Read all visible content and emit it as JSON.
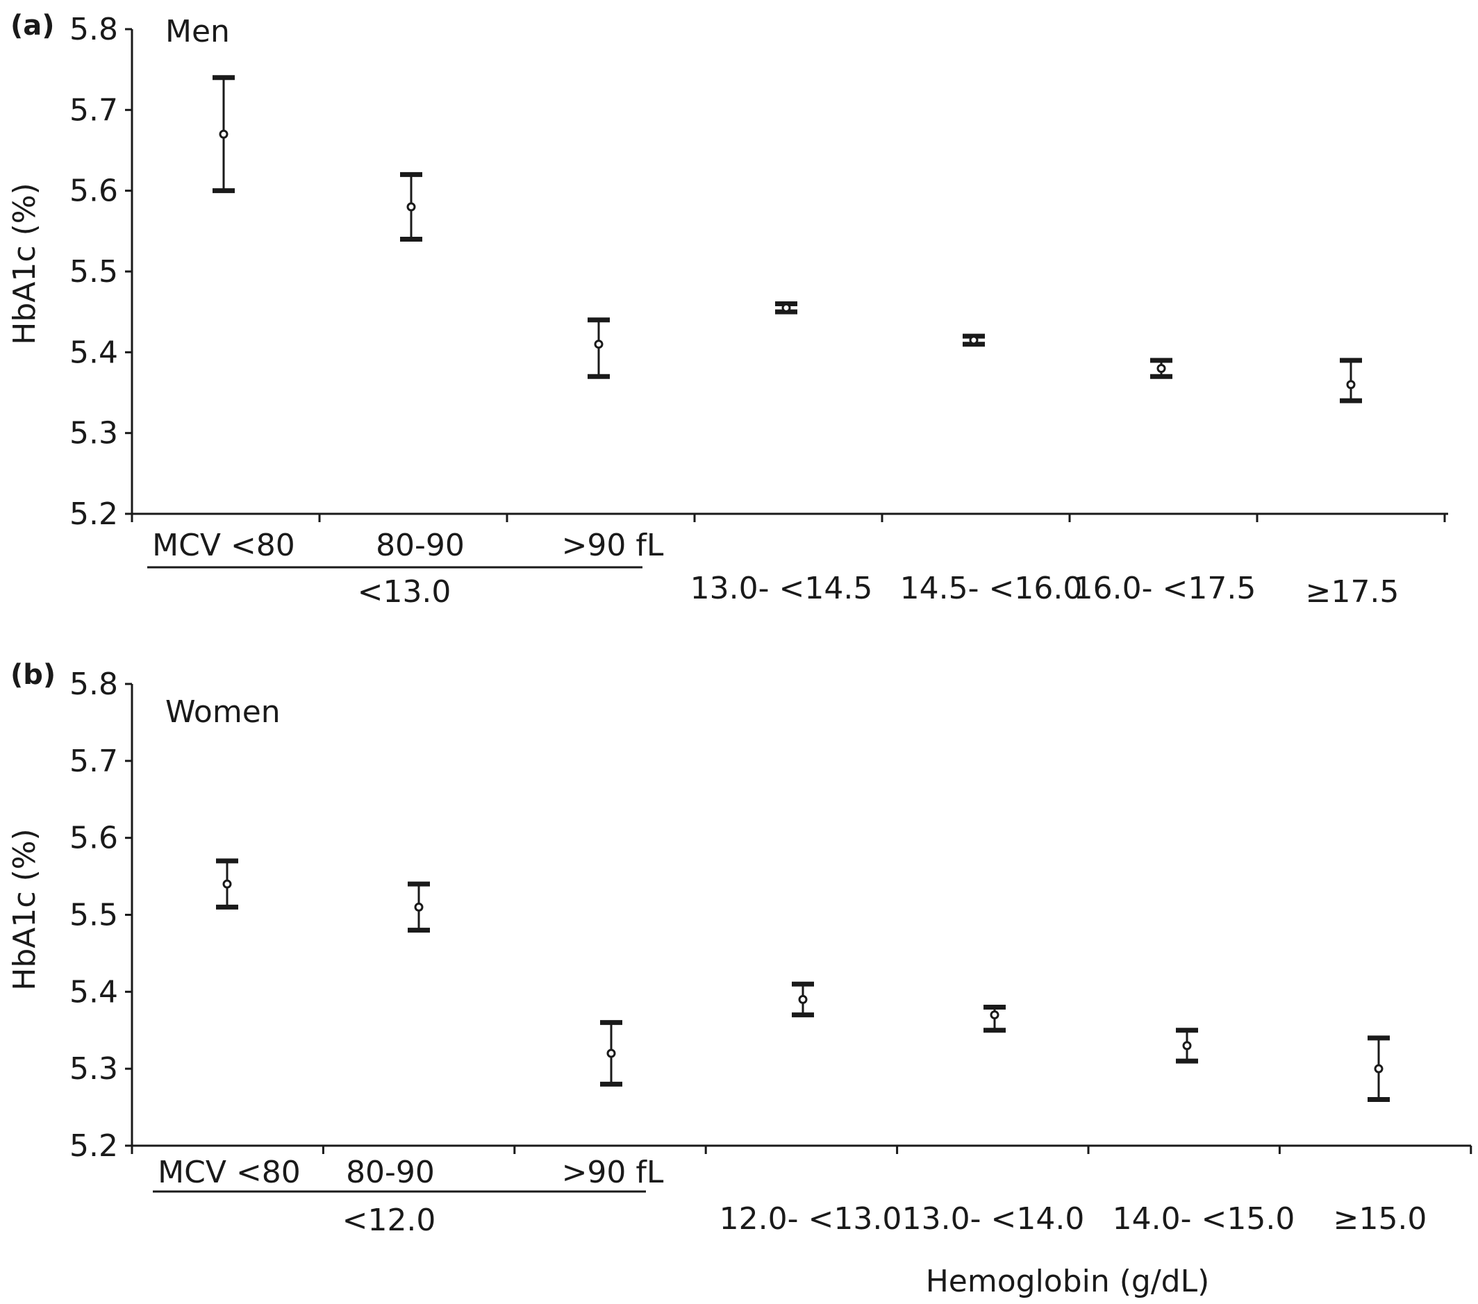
{
  "chart_data": [
    {
      "type": "scatter",
      "subtype": "point-with-error-bars",
      "panel_label": "(a)",
      "title": "Men",
      "ylabel": "HbA1c (%)",
      "ylim": [
        5.2,
        5.8
      ],
      "yticks": [
        5.2,
        5.3,
        5.4,
        5.5,
        5.6,
        5.7,
        5.8
      ],
      "ytick_labels": [
        "5.2",
        "5.3",
        "5.4",
        "5.5",
        "5.6",
        "5.7",
        "5.8"
      ],
      "categories": [
        "MCV <80",
        "80-90",
        ">90 fL",
        "13.0- <14.5",
        "14.5- <16.0",
        "16.0- <17.5",
        "≥17.5"
      ],
      "group_label": "<13.0",
      "grouped_count": 3,
      "values": [
        5.67,
        5.58,
        5.41,
        5.455,
        5.415,
        5.38,
        5.36
      ],
      "lower": [
        5.6,
        5.54,
        5.37,
        5.45,
        5.41,
        5.37,
        5.34
      ],
      "upper": [
        5.74,
        5.62,
        5.44,
        5.46,
        5.42,
        5.39,
        5.39
      ],
      "grid": false
    },
    {
      "type": "scatter",
      "subtype": "point-with-error-bars",
      "panel_label": "(b)",
      "title": "Women",
      "ylabel": "HbA1c (%)",
      "xlabel": "Hemoglobin (g/dL)",
      "ylim": [
        5.2,
        5.8
      ],
      "yticks": [
        5.2,
        5.3,
        5.4,
        5.5,
        5.6,
        5.7,
        5.8
      ],
      "ytick_labels": [
        "5.2",
        "5.3",
        "5.4",
        "5.5",
        "5.6",
        "5.7",
        "5.8"
      ],
      "categories": [
        "MCV <80",
        "80-90",
        ">90 fL",
        "12.0- <13.0",
        "13.0- <14.0",
        "14.0- <15.0",
        "≥15.0"
      ],
      "group_label": "<12.0",
      "grouped_count": 3,
      "values": [
        5.54,
        5.51,
        5.32,
        5.39,
        5.37,
        5.33,
        5.3
      ],
      "lower": [
        5.51,
        5.48,
        5.28,
        5.37,
        5.35,
        5.31,
        5.26
      ],
      "upper": [
        5.57,
        5.54,
        5.36,
        5.41,
        5.38,
        5.35,
        5.34
      ],
      "grid": false
    }
  ]
}
